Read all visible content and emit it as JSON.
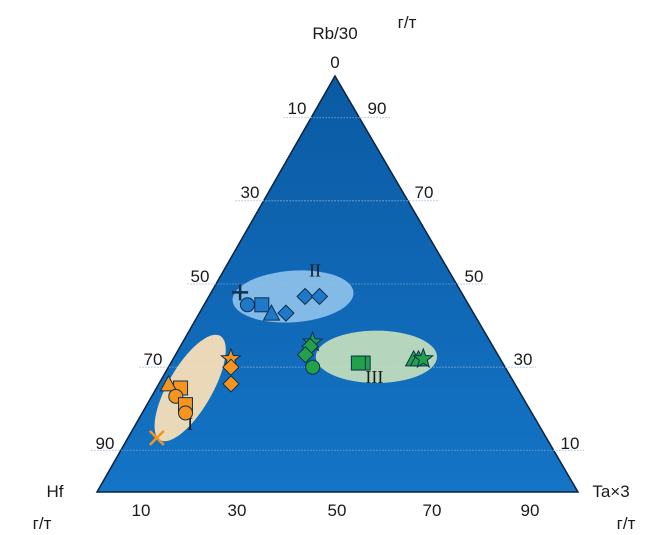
{
  "chart_data": {
    "type": "scatter",
    "subtype": "ternary",
    "grid": true,
    "vertices": {
      "top": {
        "label": "Rb/30",
        "unit": "г/т"
      },
      "left": {
        "label": "Hf",
        "unit": "г/т"
      },
      "right": {
        "label": "Ta×3",
        "unit": "г/т"
      }
    },
    "ticks": {
      "bottom": [
        "10",
        "30",
        "50",
        "70",
        "90"
      ],
      "left": [
        "0",
        "10",
        "30",
        "50",
        "70",
        "90"
      ],
      "right": [
        "90",
        "70",
        "50",
        "30",
        "10"
      ]
    },
    "colors": {
      "triangle_top": "#0b5aa3",
      "triangle_bottom": "#1474c6",
      "group_I": "#f7941d",
      "group_I_field": "#fde2b8",
      "group_II": "#1f79c8",
      "group_II_field": "#8ec1ea",
      "group_III": "#22a04a",
      "group_III_field": "#c3e0bd"
    },
    "fields": [
      {
        "label": "I",
        "center": {
          "hf": 68,
          "rb": 25,
          "ta": 7
        },
        "rx": 12.5,
        "ry": 5.3,
        "rot": -60,
        "color_key": "group_I_field"
      },
      {
        "label": "II",
        "center": {
          "hf": 35.5,
          "rb": 47,
          "ta": 17.5
        },
        "rx": 12.6,
        "ry": 6.2,
        "rot": -4,
        "color_key": "group_II_field"
      },
      {
        "label": "III",
        "center": {
          "hf": 25.5,
          "rb": 32.5,
          "ta": 42
        },
        "rx": 12.6,
        "ry": 6.3,
        "rot": 0,
        "color_key": "group_III_field"
      }
    ],
    "series": [
      {
        "group": "I",
        "color_key": "group_I",
        "points": [
          {
            "shape": "star",
            "hf": 56,
            "rb": 32,
            "ta": 12
          },
          {
            "shape": "diamond",
            "hf": 57,
            "rb": 30,
            "ta": 13
          },
          {
            "shape": "diamond",
            "hf": 59,
            "rb": 26,
            "ta": 15
          },
          {
            "shape": "square",
            "hf": 70,
            "rb": 25,
            "ta": 5
          },
          {
            "shape": "triangle",
            "hf": 72,
            "rb": 26,
            "ta": 2
          },
          {
            "shape": "circle",
            "hf": 72,
            "rb": 23,
            "ta": 5
          },
          {
            "shape": "square",
            "hf": 71,
            "rb": 21,
            "ta": 8
          },
          {
            "shape": "circle",
            "hf": 72,
            "rb": 19,
            "ta": 9
          },
          {
            "shape": "cross",
            "hf": 81,
            "rb": 13,
            "ta": 6
          }
        ]
      },
      {
        "group": "II",
        "color_key": "group_II",
        "points": [
          {
            "shape": "plus",
            "hf": 46,
            "rb": 48,
            "ta": 6
          },
          {
            "shape": "circle",
            "hf": 46,
            "rb": 45,
            "ta": 9
          },
          {
            "shape": "square",
            "hf": 43,
            "rb": 45,
            "ta": 12
          },
          {
            "shape": "triangle",
            "hf": 42,
            "rb": 43,
            "ta": 15
          },
          {
            "shape": "diamond",
            "hf": 39,
            "rb": 43,
            "ta": 18
          },
          {
            "shape": "diamond",
            "hf": 33,
            "rb": 47,
            "ta": 20
          },
          {
            "shape": "diamond",
            "hf": 30,
            "rb": 47,
            "ta": 23
          }
        ]
      },
      {
        "group": "III",
        "color_key": "group_III",
        "points": [
          {
            "shape": "star",
            "hf": 37,
            "rb": 36,
            "ta": 27
          },
          {
            "shape": "diamond",
            "hf": 38,
            "rb": 35,
            "ta": 27
          },
          {
            "shape": "diamond",
            "hf": 40,
            "rb": 33,
            "ta": 27
          },
          {
            "shape": "circle",
            "hf": 40,
            "rb": 30,
            "ta": 30
          },
          {
            "shape": "square",
            "hf": 29,
            "rb": 31,
            "ta": 40
          },
          {
            "shape": "square",
            "hf": 30,
            "rb": 31,
            "ta": 39
          },
          {
            "shape": "triangle",
            "hf": 18,
            "rb": 32,
            "ta": 50
          },
          {
            "shape": "triangle",
            "hf": 17,
            "rb": 32,
            "ta": 51
          },
          {
            "shape": "star",
            "hf": 16,
            "rb": 32,
            "ta": 52
          }
        ]
      }
    ]
  }
}
